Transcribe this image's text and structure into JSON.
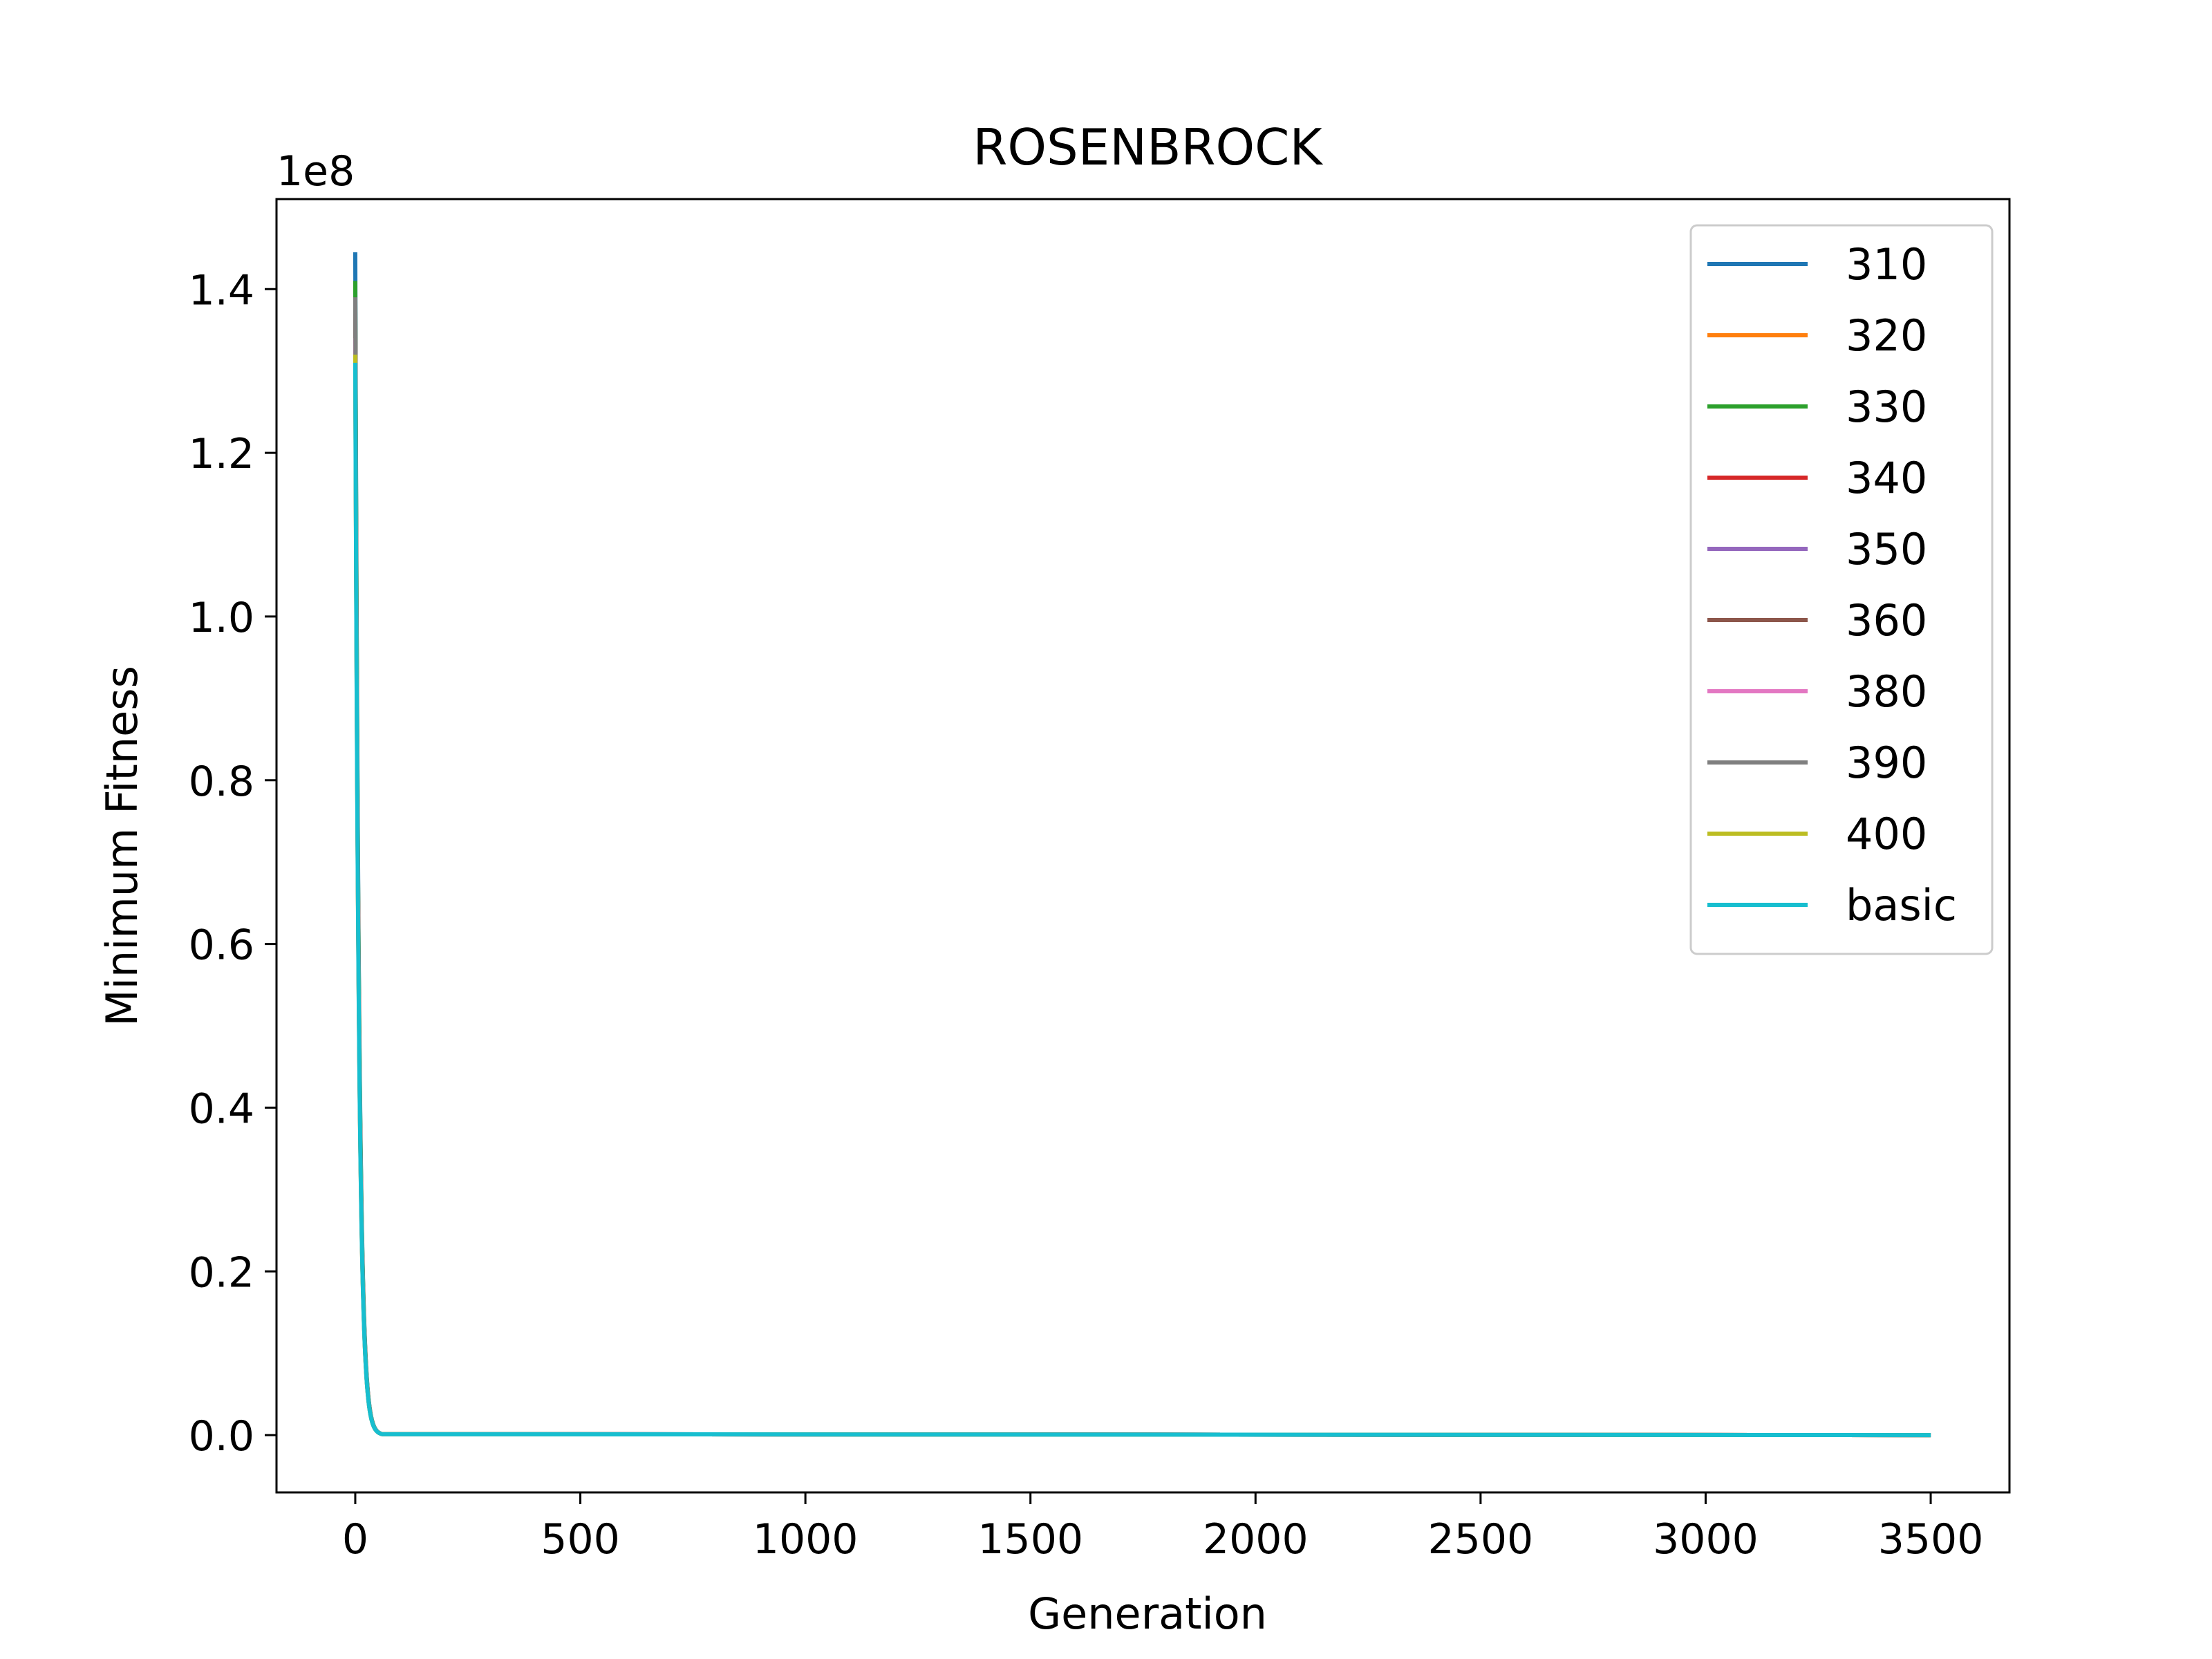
{
  "chart_data": {
    "type": "line",
    "title": "ROSENBROCK",
    "xlabel": "Generation",
    "ylabel": "Minimum Fitness",
    "y_offset_label": "1e8",
    "y_scale_factor": 100000000,
    "xlim": [
      -175,
      3675
    ],
    "ylim": [
      -7000000,
      151000000
    ],
    "x_ticks": [
      0,
      500,
      1000,
      1500,
      2000,
      2500,
      3000,
      3500
    ],
    "x_tick_labels": [
      "0",
      "500",
      "1000",
      "1500",
      "2000",
      "2500",
      "3000",
      "3500"
    ],
    "y_ticks": [
      0,
      20000000,
      40000000,
      60000000,
      80000000,
      100000000,
      120000000,
      140000000
    ],
    "y_tick_labels": [
      "0.0",
      "0.2",
      "0.4",
      "0.6",
      "0.8",
      "1.0",
      "1.2",
      "1.4"
    ],
    "grid": false,
    "legend_position": "upper right",
    "series": [
      {
        "name": "310",
        "color": "#1f77b4",
        "start_value": 144500000
      },
      {
        "name": "320",
        "color": "#ff7f0e",
        "start_value": 133500000
      },
      {
        "name": "330",
        "color": "#2ca02c",
        "start_value": 141000000
      },
      {
        "name": "340",
        "color": "#d62728",
        "start_value": 136000000
      },
      {
        "name": "350",
        "color": "#9467bd",
        "start_value": 135000000
      },
      {
        "name": "360",
        "color": "#8c564b",
        "start_value": 137000000
      },
      {
        "name": "380",
        "color": "#e377c2",
        "start_value": 134000000
      },
      {
        "name": "390",
        "color": "#7f7f7f",
        "start_value": 139000000
      },
      {
        "name": "400",
        "color": "#bcbd22",
        "start_value": 132000000
      },
      {
        "name": "basic",
        "color": "#17becf",
        "start_value": 131000000
      }
    ],
    "end_generation": 3500,
    "final_value": 0
  }
}
